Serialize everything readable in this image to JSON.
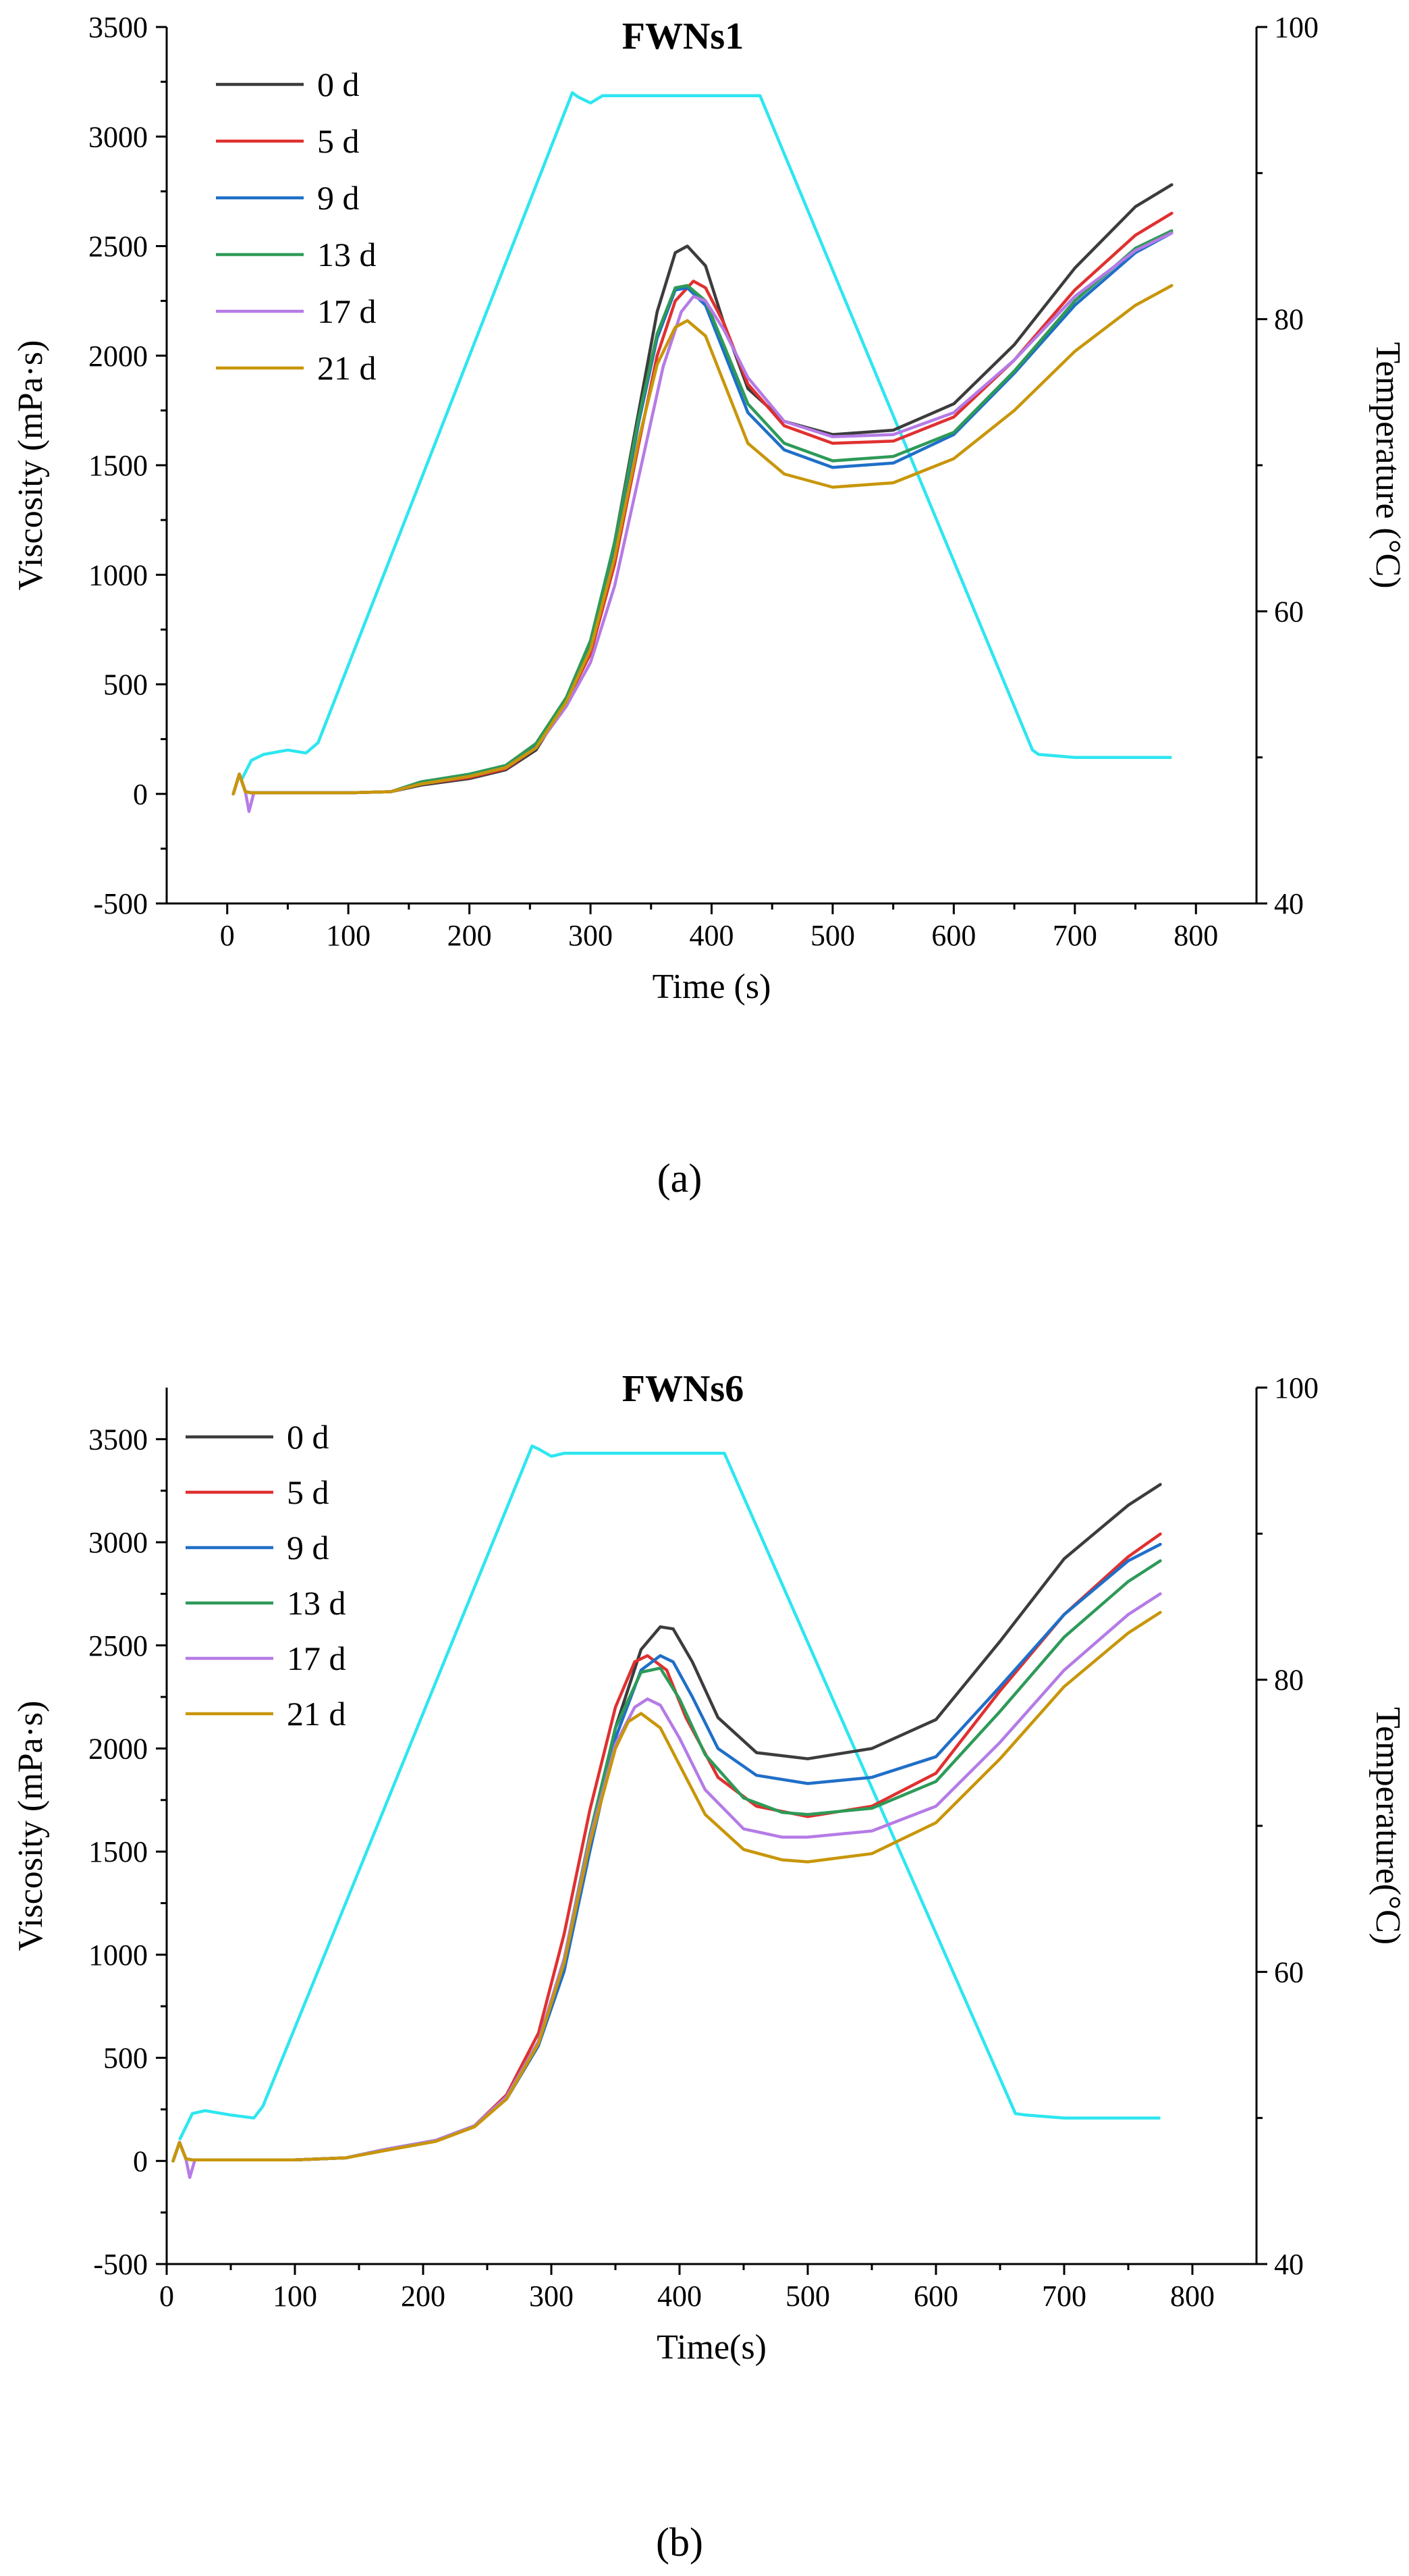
{
  "figure": {
    "temp_color": "#2EE6F0",
    "colors": {
      "0 d": "#3c3c3c",
      "5 d": "#e03030",
      "9 d": "#1f6fc8",
      "13 d": "#2e9a58",
      "17 d": "#b57be6",
      "21 d": "#c8960a"
    }
  },
  "chart_data": [
    {
      "type": "line",
      "title": "FWNs1",
      "caption": "(a)",
      "xlabel": "Time (s)",
      "ylabel": "Viscosity (mPa·s)",
      "y2label": "Temperature (°C)",
      "xlim": [
        -50,
        850
      ],
      "ylim": [
        -500,
        3500
      ],
      "y2lim": [
        40,
        100
      ],
      "xticks": [
        0,
        100,
        200,
        300,
        400,
        500,
        600,
        700,
        800
      ],
      "yticks": [
        -500,
        0,
        500,
        1000,
        1500,
        2000,
        2500,
        3000,
        3500
      ],
      "y2ticks": [
        40,
        60,
        80,
        100
      ],
      "legend": [
        "0 d",
        "5 d",
        "9 d",
        "13 d",
        "17 d",
        "21 d"
      ],
      "series": [
        {
          "name": "0 d",
          "x": [
            5,
            10,
            15,
            20,
            60,
            100,
            135,
            160,
            200,
            230,
            255,
            280,
            300,
            320,
            340,
            355,
            370,
            380,
            395,
            410,
            430,
            460,
            500,
            550,
            600,
            650,
            700,
            750,
            780
          ],
          "values": [
            0,
            90,
            10,
            5,
            5,
            5,
            10,
            40,
            70,
            110,
            200,
            420,
            680,
            1150,
            1750,
            2200,
            2470,
            2500,
            2410,
            2150,
            1850,
            1700,
            1640,
            1660,
            1780,
            2050,
            2400,
            2680,
            2780
          ]
        },
        {
          "name": "5 d",
          "x": [
            5,
            10,
            15,
            20,
            60,
            100,
            135,
            160,
            200,
            230,
            255,
            280,
            300,
            320,
            340,
            355,
            370,
            385,
            395,
            410,
            430,
            460,
            500,
            550,
            600,
            650,
            700,
            750,
            780
          ],
          "values": [
            0,
            90,
            10,
            5,
            5,
            5,
            10,
            45,
            75,
            115,
            210,
            420,
            640,
            1050,
            1600,
            2000,
            2250,
            2340,
            2310,
            2150,
            1870,
            1680,
            1600,
            1610,
            1720,
            1980,
            2300,
            2550,
            2650
          ]
        },
        {
          "name": "9 d",
          "x": [
            5,
            10,
            15,
            20,
            60,
            100,
            135,
            160,
            200,
            230,
            255,
            280,
            300,
            320,
            340,
            355,
            370,
            380,
            395,
            410,
            430,
            460,
            500,
            550,
            600,
            650,
            700,
            750,
            780
          ],
          "values": [
            0,
            90,
            10,
            5,
            5,
            5,
            10,
            50,
            85,
            125,
            220,
            430,
            680,
            1120,
            1700,
            2080,
            2300,
            2310,
            2230,
            2020,
            1740,
            1570,
            1490,
            1510,
            1640,
            1920,
            2230,
            2470,
            2560
          ]
        },
        {
          "name": "13 d",
          "x": [
            5,
            10,
            15,
            20,
            60,
            100,
            135,
            160,
            200,
            230,
            255,
            280,
            300,
            320,
            340,
            355,
            370,
            380,
            395,
            410,
            430,
            460,
            500,
            550,
            600,
            650,
            700,
            750,
            780
          ],
          "values": [
            0,
            90,
            10,
            5,
            5,
            5,
            10,
            55,
            90,
            130,
            230,
            440,
            700,
            1150,
            1720,
            2100,
            2310,
            2320,
            2250,
            2050,
            1780,
            1600,
            1520,
            1540,
            1650,
            1930,
            2250,
            2490,
            2570
          ]
        },
        {
          "name": "17 d",
          "x": [
            5,
            10,
            15,
            18,
            22,
            60,
            100,
            135,
            160,
            200,
            230,
            255,
            280,
            300,
            320,
            340,
            360,
            375,
            385,
            395,
            410,
            430,
            460,
            500,
            550,
            600,
            650,
            700,
            750,
            780
          ],
          "values": [
            0,
            90,
            10,
            -80,
            5,
            5,
            5,
            10,
            45,
            80,
            120,
            210,
            400,
            600,
            950,
            1450,
            1950,
            2200,
            2270,
            2250,
            2120,
            1900,
            1700,
            1630,
            1640,
            1740,
            1980,
            2270,
            2480,
            2560
          ]
        },
        {
          "name": "21 d",
          "x": [
            5,
            10,
            15,
            20,
            60,
            100,
            135,
            160,
            200,
            230,
            255,
            280,
            300,
            320,
            340,
            355,
            370,
            380,
            395,
            410,
            430,
            460,
            500,
            550,
            600,
            650,
            700,
            750,
            780
          ],
          "values": [
            0,
            90,
            10,
            5,
            5,
            5,
            10,
            45,
            80,
            120,
            210,
            420,
            660,
            1080,
            1620,
            1960,
            2130,
            2160,
            2090,
            1880,
            1600,
            1460,
            1400,
            1420,
            1530,
            1750,
            2020,
            2230,
            2320
          ]
        }
      ],
      "temperature": {
        "x": [
          12,
          20,
          30,
          50,
          65,
          75,
          285,
          290,
          300,
          310,
          440,
          665,
          670,
          700,
          780
        ],
        "values": [
          48.5,
          49.8,
          50.2,
          50.5,
          50.3,
          51,
          95.5,
          95.2,
          94.8,
          95.3,
          95.3,
          50.5,
          50.2,
          50,
          50
        ]
      }
    },
    {
      "type": "line",
      "title": "FWNs6",
      "caption": "(b)",
      "xlabel": "Time(s)",
      "ylabel": "Viscosity (mPa·s)",
      "y2label": "Temperature(°C)",
      "xlim": [
        0,
        850
      ],
      "ylim": [
        -500,
        3750
      ],
      "y2lim": [
        40,
        100
      ],
      "xticks": [
        0,
        100,
        200,
        300,
        400,
        500,
        600,
        700,
        800
      ],
      "yticks": [
        -500,
        0,
        500,
        1000,
        1500,
        2000,
        2500,
        3000,
        3500
      ],
      "y2ticks": [
        40,
        60,
        80,
        100
      ],
      "legend": [
        "0 d",
        "5 d",
        "9 d",
        "13 d",
        "17 d",
        "21 d"
      ],
      "series": [
        {
          "name": "0 d",
          "x": [
            5,
            10,
            15,
            20,
            60,
            100,
            140,
            170,
            210,
            240,
            265,
            290,
            310,
            330,
            350,
            370,
            385,
            395,
            410,
            430,
            460,
            500,
            550,
            600,
            650,
            700,
            750,
            775
          ],
          "values": [
            0,
            90,
            10,
            5,
            5,
            5,
            15,
            55,
            100,
            170,
            300,
            560,
            960,
            1550,
            2100,
            2480,
            2590,
            2580,
            2420,
            2150,
            1980,
            1950,
            2000,
            2140,
            2520,
            2920,
            3180,
            3280
          ]
        },
        {
          "name": "5 d",
          "x": [
            5,
            10,
            15,
            20,
            60,
            100,
            140,
            170,
            210,
            240,
            265,
            290,
            310,
            330,
            350,
            365,
            375,
            390,
            405,
            430,
            460,
            500,
            550,
            600,
            650,
            700,
            750,
            775
          ],
          "values": [
            0,
            90,
            10,
            5,
            5,
            5,
            15,
            55,
            100,
            170,
            320,
            620,
            1100,
            1700,
            2200,
            2420,
            2450,
            2380,
            2150,
            1860,
            1720,
            1670,
            1720,
            1880,
            2280,
            2650,
            2930,
            3040
          ]
        },
        {
          "name": "9 d",
          "x": [
            5,
            10,
            15,
            20,
            60,
            100,
            140,
            170,
            210,
            240,
            265,
            290,
            310,
            330,
            350,
            370,
            385,
            395,
            410,
            430,
            460,
            500,
            550,
            600,
            650,
            700,
            750,
            775
          ],
          "values": [
            0,
            90,
            10,
            5,
            5,
            5,
            15,
            55,
            100,
            170,
            300,
            560,
            920,
            1500,
            2050,
            2380,
            2450,
            2420,
            2250,
            2000,
            1870,
            1830,
            1860,
            1960,
            2300,
            2650,
            2910,
            2990
          ]
        },
        {
          "name": "13 d",
          "x": [
            5,
            10,
            15,
            20,
            60,
            100,
            140,
            170,
            210,
            240,
            265,
            290,
            310,
            330,
            350,
            370,
            385,
            400,
            420,
            450,
            480,
            500,
            550,
            600,
            650,
            700,
            750,
            775
          ],
          "values": [
            0,
            90,
            10,
            5,
            5,
            5,
            15,
            55,
            100,
            170,
            310,
            580,
            980,
            1580,
            2100,
            2370,
            2390,
            2240,
            1970,
            1760,
            1690,
            1680,
            1710,
            1840,
            2180,
            2540,
            2810,
            2910
          ]
        },
        {
          "name": "17 d",
          "x": [
            5,
            10,
            15,
            18,
            22,
            60,
            100,
            140,
            170,
            210,
            240,
            265,
            290,
            310,
            330,
            350,
            365,
            375,
            385,
            400,
            420,
            450,
            480,
            500,
            550,
            600,
            650,
            700,
            750,
            775
          ],
          "values": [
            0,
            90,
            10,
            -80,
            5,
            5,
            5,
            15,
            55,
            100,
            170,
            310,
            580,
            980,
            1560,
            2020,
            2200,
            2240,
            2210,
            2050,
            1800,
            1610,
            1570,
            1570,
            1600,
            1720,
            2030,
            2380,
            2650,
            2750
          ]
        },
        {
          "name": "21 d",
          "x": [
            5,
            10,
            15,
            20,
            60,
            100,
            140,
            170,
            210,
            240,
            265,
            290,
            310,
            330,
            350,
            360,
            370,
            385,
            400,
            420,
            450,
            480,
            500,
            550,
            600,
            650,
            700,
            750,
            775
          ],
          "values": [
            0,
            90,
            10,
            5,
            5,
            5,
            15,
            50,
            95,
            165,
            300,
            570,
            960,
            1540,
            2000,
            2130,
            2170,
            2100,
            1920,
            1680,
            1510,
            1460,
            1450,
            1490,
            1640,
            1950,
            2300,
            2560,
            2660
          ]
        }
      ],
      "temperature": {
        "x": [
          10,
          20,
          30,
          50,
          68,
          75,
          285,
          290,
          300,
          310,
          435,
          662,
          670,
          700,
          775
        ],
        "values": [
          48.5,
          50.3,
          50.5,
          50.2,
          50,
          50.8,
          96,
          95.8,
          95.3,
          95.5,
          95.5,
          50.3,
          50.2,
          50,
          50
        ]
      }
    }
  ]
}
